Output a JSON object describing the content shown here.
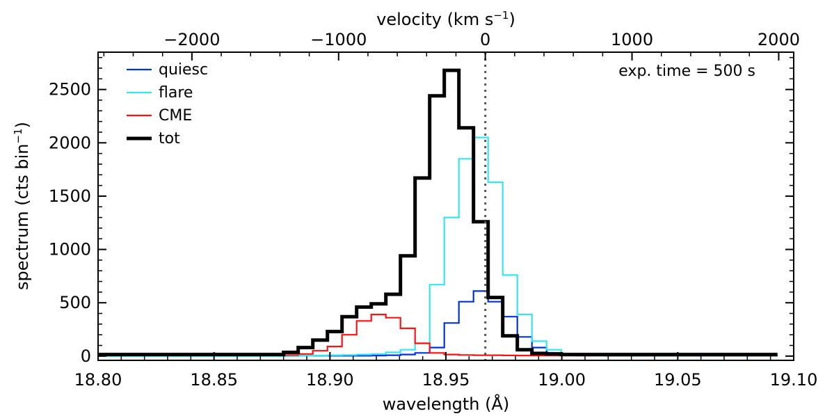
{
  "chart_data": {
    "type": "line",
    "step": true,
    "xlabel": "wavelength (Å)",
    "ylabel_main": "spectrum  (cts bin",
    "ylabel_sup": "−1",
    "ylabel_close": ")",
    "top_axis_label_main": "velocity  (km s",
    "top_axis_label_sup": "−1",
    "top_axis_label_close": ")",
    "annotation": "exp. time = 500 s",
    "xlim": [
      18.8,
      19.1
    ],
    "ylim": [
      -40,
      2850
    ],
    "x_ticks": [
      18.8,
      18.85,
      18.9,
      18.95,
      19.0,
      19.05,
      19.1
    ],
    "x_tick_labels": [
      "18.80",
      "18.85",
      "18.90",
      "18.95",
      "19.00",
      "19.05",
      "19.10"
    ],
    "y_ticks": [
      0,
      500,
      1000,
      1500,
      2000,
      2500
    ],
    "y_tick_labels": [
      "0",
      "500",
      "1000",
      "1500",
      "2000",
      "2500"
    ],
    "top_ticks_velocity": [
      -2000,
      -1000,
      0,
      1000,
      2000
    ],
    "top_tick_labels": [
      "−2000",
      "−1000",
      "0",
      "1000",
      "2000"
    ],
    "rest_wavelength": 18.967,
    "velocity_scale_kms_per_angstrom": 15806,
    "bin_edges": [
      18.8,
      18.88,
      18.8863,
      18.8926,
      18.8989,
      18.9052,
      18.9115,
      18.9178,
      18.9241,
      18.9304,
      18.9367,
      18.943,
      18.9493,
      18.9556,
      18.9619,
      18.9682,
      18.9745,
      18.9808,
      18.9871,
      18.9934,
      18.9997,
      19.006,
      19.0123,
      19.0186,
      19.0249,
      19.04,
      19.06,
      19.08,
      19.093
    ],
    "series": [
      {
        "name": "quiesc",
        "color": "#0033dd",
        "values": [
          3,
          3,
          3,
          3,
          3,
          3,
          3,
          5,
          8,
          15,
          30,
          80,
          310,
          510,
          610,
          510,
          370,
          180,
          80,
          30,
          10,
          5,
          3,
          3,
          3,
          3,
          3,
          3
        ]
      },
      {
        "name": "flare",
        "color": "#33e6f0",
        "values": [
          0,
          0,
          3,
          5,
          8,
          10,
          15,
          20,
          35,
          60,
          120,
          670,
          1300,
          1850,
          2050,
          1630,
          760,
          390,
          140,
          60,
          20,
          5,
          3,
          2,
          2,
          2,
          2,
          2
        ]
      },
      {
        "name": "CME",
        "color": "#ff1111",
        "values": [
          8,
          10,
          20,
          50,
          90,
          200,
          330,
          390,
          360,
          260,
          120,
          30,
          15,
          10,
          8,
          8,
          6,
          5,
          5,
          5,
          5,
          5,
          5,
          5,
          5,
          5,
          5,
          5
        ]
      },
      {
        "name": "tot",
        "color": "#000000",
        "values": [
          15,
          35,
          80,
          150,
          230,
          370,
          460,
          490,
          580,
          940,
          1670,
          2440,
          2680,
          2140,
          1260,
          550,
          190,
          60,
          25,
          20,
          15,
          15,
          15,
          15,
          15,
          15,
          15,
          15
        ]
      }
    ],
    "legend_position": "top-left"
  }
}
